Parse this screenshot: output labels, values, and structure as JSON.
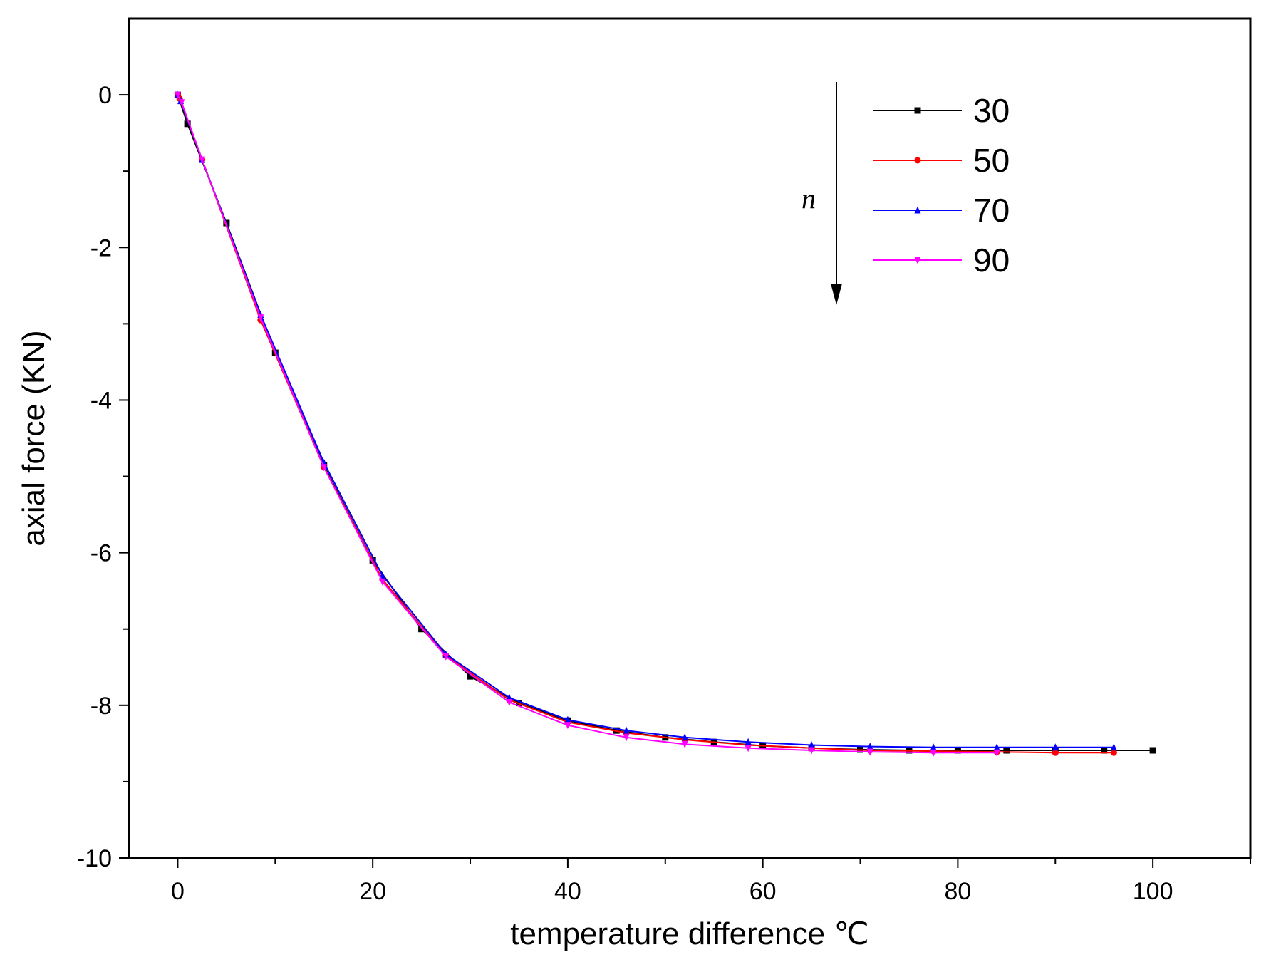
{
  "chart_data": {
    "type": "line",
    "xlabel": "temperature difference ℃",
    "ylabel": "axial force (KN)",
    "xlim": [
      -5,
      110
    ],
    "ylim": [
      -10,
      1
    ],
    "xticks": [
      0,
      20,
      40,
      60,
      80,
      100
    ],
    "xtick_labels": [
      "0",
      "20",
      "40",
      "60",
      "80",
      "100"
    ],
    "yticks": [
      0,
      -2,
      -4,
      -6,
      -8,
      -10
    ],
    "ytick_labels": [
      "0",
      "-2",
      "-4",
      "-6",
      "-8",
      "-10"
    ],
    "grid": false,
    "legend_position": "top-right",
    "arrow_label": "n",
    "series": [
      {
        "name": "30",
        "color": "#000000",
        "marker": "square",
        "x": [
          0,
          1,
          5,
          10,
          15,
          20,
          25,
          30,
          35,
          40,
          45,
          50,
          55,
          60,
          65,
          70,
          75,
          80,
          85,
          90,
          95,
          100
        ],
        "y": [
          0,
          -0.38,
          -1.68,
          -3.38,
          -4.86,
          -6.1,
          -7.0,
          -7.62,
          -7.97,
          -8.2,
          -8.33,
          -8.42,
          -8.48,
          -8.53,
          -8.56,
          -8.58,
          -8.59,
          -8.59,
          -8.59,
          -8.59,
          -8.59,
          -8.59
        ]
      },
      {
        "name": "50",
        "color": "#ff0000",
        "marker": "circle",
        "x": [
          0,
          0.2,
          2.5,
          8.5,
          15,
          21,
          27.5,
          34,
          40,
          46,
          52,
          58.5,
          65,
          71,
          77.5,
          84,
          90,
          96
        ],
        "y": [
          0,
          -0.05,
          -0.85,
          -2.95,
          -4.88,
          -6.35,
          -7.35,
          -7.93,
          -8.22,
          -8.36,
          -8.45,
          -8.52,
          -8.56,
          -8.59,
          -8.6,
          -8.61,
          -8.62,
          -8.62
        ]
      },
      {
        "name": "70",
        "color": "#0000ff",
        "marker": "triangle-up",
        "x": [
          0,
          0.3,
          2.5,
          8.5,
          15,
          21,
          27.5,
          34,
          40,
          46,
          52,
          58.5,
          65,
          71,
          77.5,
          84,
          90,
          96
        ],
        "y": [
          0,
          -0.08,
          -0.85,
          -2.88,
          -4.82,
          -6.3,
          -7.33,
          -7.9,
          -8.19,
          -8.33,
          -8.42,
          -8.48,
          -8.52,
          -8.54,
          -8.55,
          -8.55,
          -8.55,
          -8.55
        ]
      },
      {
        "name": "90",
        "color": "#ff00ff",
        "marker": "triangle-down",
        "x": [
          0,
          0.4,
          2.5,
          8.5,
          15,
          21,
          27.5,
          34,
          40,
          46,
          52,
          58.5,
          65,
          71,
          77.5,
          84
        ],
        "y": [
          0,
          -0.1,
          -0.85,
          -2.92,
          -4.88,
          -6.38,
          -7.36,
          -7.96,
          -8.26,
          -8.42,
          -8.51,
          -8.56,
          -8.59,
          -8.61,
          -8.62,
          -8.62
        ]
      }
    ]
  }
}
